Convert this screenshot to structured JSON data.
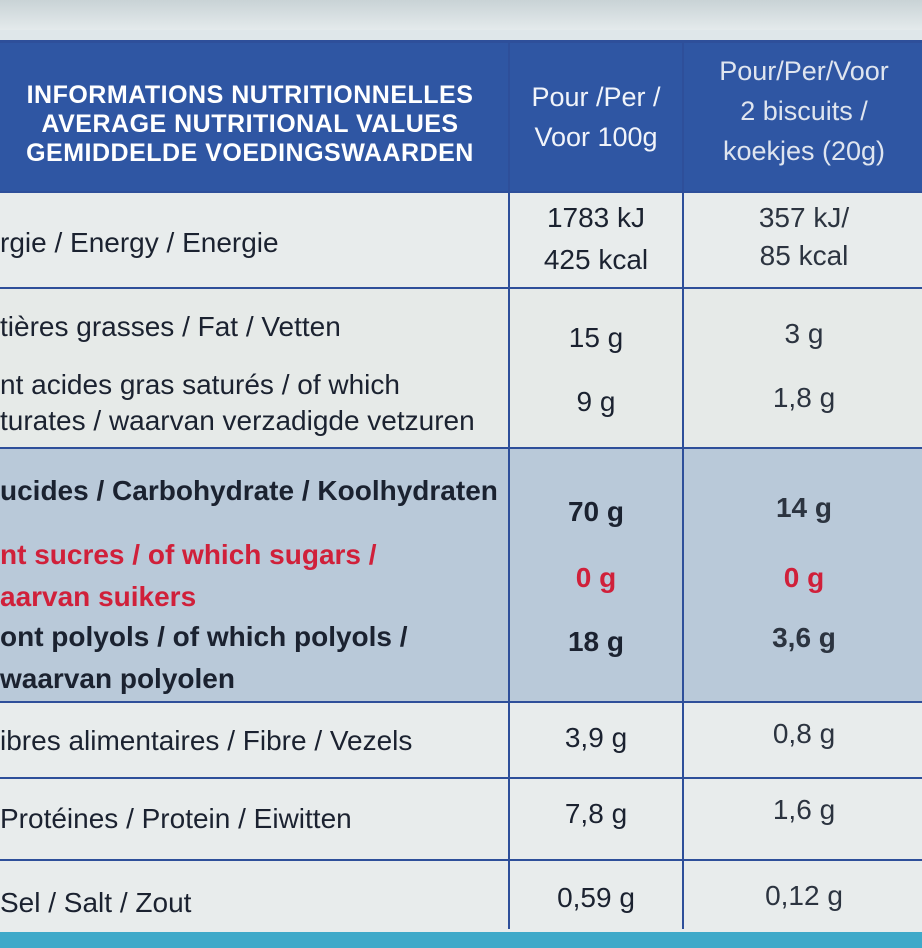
{
  "header": {
    "label_lines": [
      "INFORMATIONS NUTRITIONNELLES",
      "AVERAGE NUTRITIONAL VALUES",
      "GEMIDDELDE VOEDINGSWAARDEN"
    ],
    "col1_lines": [
      "Pour /Per /",
      "Voor 100g"
    ],
    "col2_lines": [
      "Pour/Per/Voor",
      "2 biscuits /",
      "koekjes (20g)"
    ]
  },
  "rows": {
    "energy": {
      "label": "rgie / Energy / Energie",
      "per100_kj": "1783 kJ",
      "per100_kcal": "425 kcal",
      "portion_kj": "357 kJ/",
      "portion_kcal": "85 kcal"
    },
    "fat": {
      "label": "tières grasses / Fat / Vetten",
      "per100": "15 g",
      "portion": "3 g"
    },
    "saturates": {
      "label_lines": [
        "nt acides gras saturés / of which",
        "turates / waarvan verzadigde vetzuren"
      ],
      "per100": "9 g",
      "portion": "1,8 g"
    },
    "carbohydrate": {
      "label": "ucides / Carbohydrate / Koolhydraten",
      "per100": "70 g",
      "portion": "14 g"
    },
    "sugars": {
      "label_lines": [
        "nt sucres / of which sugars /",
        "aarvan suikers"
      ],
      "per100": "0 g",
      "portion": "0 g"
    },
    "polyols": {
      "label_lines": [
        "ont polyols / of which polyols /",
        "waarvan polyolen"
      ],
      "per100": "18 g",
      "portion": "3,6 g"
    },
    "fibre": {
      "label": "ibres alimentaires / Fibre / Vezels",
      "per100": "3,9 g",
      "portion": "0,8 g"
    },
    "protein": {
      "label": "Protéines / Protein / Eiwitten",
      "per100": "7,8 g",
      "portion": "1,6 g"
    },
    "salt": {
      "label": "Sel / Salt / Zout",
      "per100": "0,59 g",
      "portion": "0,12 g"
    }
  },
  "colors": {
    "header_blue": "#2f56a3",
    "carb_band": "#b9c9d9",
    "sugar_red": "#d0203a"
  }
}
